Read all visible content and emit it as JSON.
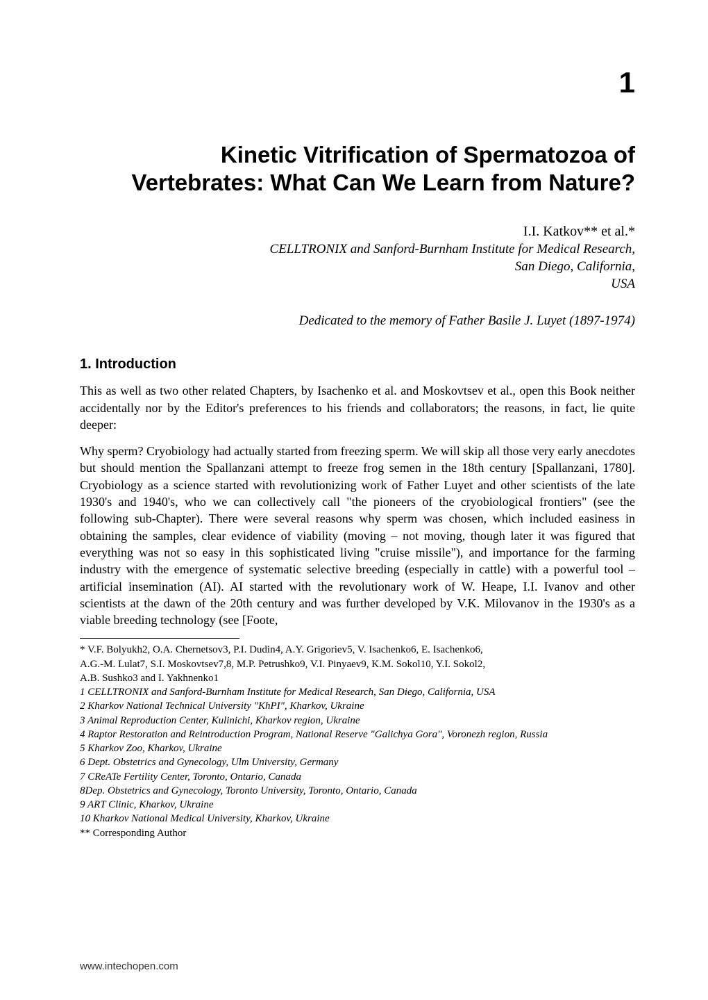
{
  "chapter_number": "1",
  "title_line1": "Kinetic Vitrification of Spermatozoa of",
  "title_line2": "Vertebrates: What Can We Learn from Nature?",
  "author_line": "I.I. Katkov** et al.*",
  "affiliation_line1": "CELLTRONIX and Sanford-Burnham Institute for Medical Research,",
  "affiliation_line2": "San Diego, California,",
  "affiliation_line3": "USA",
  "dedication": "Dedicated to the memory of Father Basile J. Luyet (1897-1974)",
  "section_heading": "1. Introduction",
  "para1": "This as well as two other related Chapters, by Isachenko et al. and Moskovtsev et al., open this Book neither accidentally nor by the Editor's preferences to his friends and collaborators; the reasons, in fact, lie quite deeper:",
  "para2": "Why sperm? Cryobiology had actually started from freezing sperm. We will skip all those very early anecdotes but should mention the Spallanzani attempt to freeze frog semen in the 18th century [Spallanzani, 1780]. Cryobiology as a science started with revolutionizing work of Father Luyet and other  scientists of the late 1930's and 1940's, who we can collectively call \"the pioneers of the cryobiological frontiers\" (see the following sub-Chapter). There were several reasons why sperm was chosen, which included easiness in obtaining the samples, clear evidence of viability (moving – not moving, though later it was figured that everything was not so easy in this sophisticated living \"cruise missile\"), and importance for the farming industry with the emergence of systematic selective breeding (especially in cattle) with a powerful tool – artificial insemination (AI). AI started with the revolutionary work of W. Heape, I.I. Ivanov and other scientists at the dawn of the 20th century and was further developed by V.K. Milovanov in the 1930's as a viable breeding technology (see [Foote,",
  "footnote_authors_l1": "* V.F. Bolyukh2, O.A. Chernetsov3, P.I. Dudin4, A.Y. Grigoriev5, V. Isachenko6, E. Isachenko6,",
  "footnote_authors_l2": "A.G.-M. Lulat7, S.I. Moskovtsev7,8, M.P. Petrushko9, V.I. Pinyaev9, K.M. Sokol10, Y.I. Sokol2,",
  "footnote_authors_l3": "A.B. Sushko3 and I. Yakhnenko1",
  "aff1": "1 CELLTRONIX and Sanford-Burnham Institute for Medical Research, San Diego, California, USA",
  "aff2": "2 Kharkov National Technical University \"KhPI\", Kharkov, Ukraine",
  "aff3": "3 Animal Reproduction Center, Kulinichi, Kharkov region, Ukraine",
  "aff4": "4 Raptor Restoration and Reintroduction Program, National Reserve \"Galichya Gora\", Voronezh region, Russia",
  "aff5": "5 Kharkov Zoo, Kharkov, Ukraine",
  "aff6": "6 Dept. Obstetrics and Gynecology, Ulm University, Germany",
  "aff7": "7 CReATe Fertility Center, Toronto, Ontario, Canada",
  "aff8": "8Dep. Obstetrics and Gynecology, Toronto University, Toronto, Ontario, Canada",
  "aff9": "9 ART Clinic, Kharkov, Ukraine",
  "aff10": "10 Kharkov National Medical University, Kharkov, Ukraine",
  "corresponding": "** Corresponding Author",
  "footer": "www.intechopen.com"
}
